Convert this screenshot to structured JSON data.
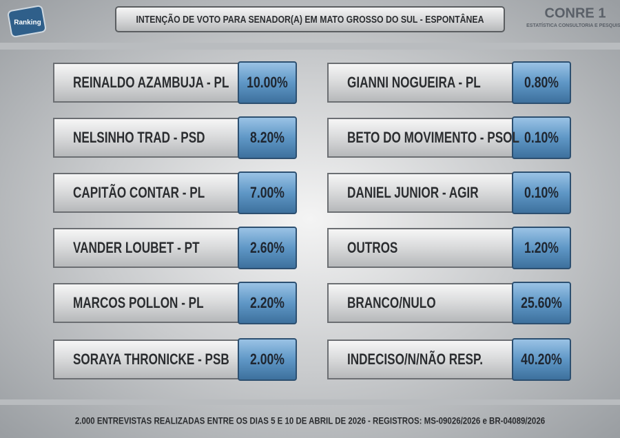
{
  "header": {
    "title": "INTENÇÃO DE VOTO PARA SENADOR(A) EM MATO GROSSO DO SUL - ESPONTÂNEA",
    "left_logo": "Ranking",
    "right_logo": "CONRE 1",
    "right_logo_subtitle": "ESTATÍSTICA CONSULTORIA E PESQUISA"
  },
  "columns": [
    [
      {
        "name": "REINALDO AZAMBUJA - PL",
        "value": "10.00%"
      },
      {
        "name": "NELSINHO TRAD - PSD",
        "value": "8.20%"
      },
      {
        "name": "CAPITÃO CONTAR - PL",
        "value": "7.00%"
      },
      {
        "name": "VANDER LOUBET - PT",
        "value": "2.60%"
      },
      {
        "name": "MARCOS POLLON - PL",
        "value": "2.20%"
      },
      {
        "name": "SORAYA THRONICKE - PSB",
        "value": "2.00%"
      }
    ],
    [
      {
        "name": "GIANNI NOGUEIRA - PL",
        "value": "0.80%"
      },
      {
        "name": "BETO DO MOVIMENTO - PSOL",
        "value": "0.10%"
      },
      {
        "name": "DANIEL JUNIOR - AGIR",
        "value": "0.10%"
      },
      {
        "name": "OUTROS",
        "value": "1.20%"
      },
      {
        "name": "BRANCO/NULO",
        "value": "25.60%"
      },
      {
        "name": "INDECISO/N/NÃO RESP.",
        "value": "40.20%"
      }
    ]
  ],
  "footer": "2.000 ENTREVISTAS REALIZADAS ENTRE OS DIAS 5 E 10 DE ABRIL DE 2026 - REGISTROS: MS-09026/2026 e BR-04089/2026"
}
